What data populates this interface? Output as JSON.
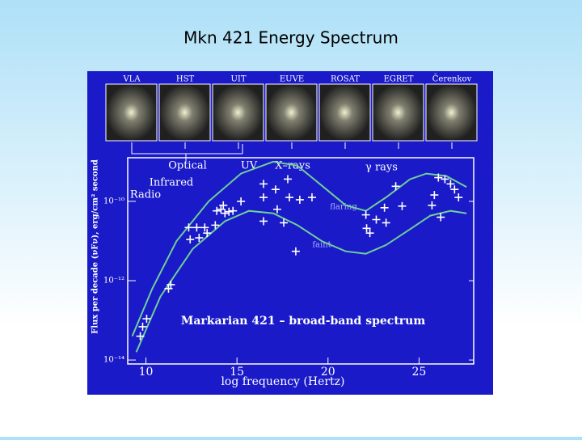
{
  "title": "Mkn 421 Energy Spectrum",
  "chart_data": {
    "type": "scatter",
    "title": "Markarian 421 – broad-band spectrum",
    "x_label": "log frequency (Hertz)",
    "y_label": "Flux per decade (νFν), erg/cm² second",
    "panels": [
      "VLA",
      "HST",
      "UIT",
      "EUVE",
      "ROSAT",
      "EGRET",
      "Čerenkov"
    ],
    "annotations": [
      "Optical",
      "UV",
      "X–rays",
      "γ rays",
      "Infrared",
      "Radio",
      "flaring",
      "faint"
    ],
    "xlim": [
      9,
      28
    ],
    "ylim": [
      -14.1,
      -8.9
    ],
    "xticks": [
      10,
      15,
      20,
      25
    ],
    "yticks": [
      {
        "value": -10,
        "label": "10⁻¹⁰"
      },
      {
        "value": -12,
        "label": "10⁻¹²"
      },
      {
        "value": -14,
        "label": "10⁻¹⁴"
      }
    ],
    "color": "#ffffff",
    "x": [
      9.69,
      9.82,
      10.04,
      11.24,
      11.37,
      12.35,
      12.79,
      13.23,
      12.43,
      12.92,
      13.36,
      13.81,
      13.89,
      14.12,
      14.34,
      14.56,
      14.78,
      15.22,
      14.25,
      16.46,
      17.12,
      17.79,
      16.46,
      17.88,
      18.45,
      19.12,
      17.21,
      16.46,
      17.57,
      18.23,
      22.08,
      22.65,
      23.19,
      23.1,
      24.07,
      23.72,
      22.12,
      22.3,
      25.71,
      25.84,
      26.19,
      26.06,
      26.42,
      26.73,
      26.95,
      27.17
    ],
    "values": [
      -13.4,
      -13.16,
      -12.96,
      -12.2,
      -12.1,
      -10.66,
      -10.66,
      -10.66,
      -10.96,
      -10.92,
      -10.8,
      -10.6,
      -10.24,
      -10.2,
      -10.3,
      -10.26,
      -10.24,
      -10.0,
      -10.1,
      -9.56,
      -9.7,
      -9.44,
      -9.9,
      -9.9,
      -9.96,
      -9.9,
      -10.2,
      -10.5,
      -10.54,
      -11.26,
      -10.34,
      -10.46,
      -10.54,
      -10.16,
      -10.12,
      -9.62,
      -10.68,
      -10.8,
      -10.1,
      -9.84,
      -10.4,
      -9.4,
      -9.44,
      -9.56,
      -9.7,
      -9.9
    ],
    "lines": [
      {
        "color": "#6fcf9a",
        "x": [
          9.25,
          10.35,
          11.68,
          13.45,
          15.22,
          16.99,
          18.32,
          19.65,
          20.97,
          22.08,
          23.19,
          24.51,
          25.4,
          26.5,
          27.61
        ],
        "y": [
          -13.4,
          -12.2,
          -11.0,
          -10.0,
          -9.3,
          -9.0,
          -9.1,
          -9.6,
          -10.1,
          -10.24,
          -9.9,
          -9.44,
          -9.3,
          -9.36,
          -9.64
        ]
      },
      {
        "color": "#6fcf9a",
        "x": [
          9.47,
          10.8,
          12.57,
          14.34,
          15.66,
          16.99,
          18.32,
          19.65,
          20.97,
          22.08,
          23.19,
          24.51,
          25.62,
          26.73,
          27.61
        ],
        "y": [
          -13.8,
          -12.4,
          -11.2,
          -10.5,
          -10.24,
          -10.3,
          -10.6,
          -11.0,
          -11.26,
          -11.32,
          -11.1,
          -10.7,
          -10.36,
          -10.24,
          -10.3
        ]
      }
    ]
  }
}
